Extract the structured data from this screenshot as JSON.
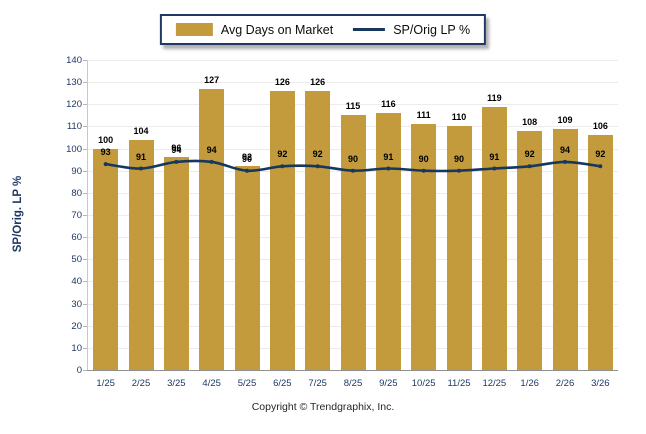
{
  "legend": {
    "bar_label": "Avg Days on Market",
    "line_label": "SP/Orig LP %"
  },
  "y_axis": {
    "title": "SP/Orig. LP %",
    "min": 0,
    "max": 140,
    "step": 10,
    "tick_labels": [
      "0",
      "10",
      "20",
      "30",
      "40",
      "50",
      "60",
      "70",
      "80",
      "90",
      "100",
      "110",
      "120",
      "130",
      "140"
    ]
  },
  "footer": {
    "copyright": "Copyright © Trendgraphix, Inc."
  },
  "colors": {
    "bar": "#c39b3d",
    "line": "#17375e",
    "axis_text": "#1f3864",
    "label_text": "#000000",
    "gridline": "#ececec"
  },
  "chart_data": {
    "type": "bar+line combo",
    "title": "",
    "xlabel": "",
    "ylabel": "SP/Orig. LP %",
    "ylim": [
      0,
      140
    ],
    "grid": true,
    "legend_position": "top-center",
    "categories": [
      "1/25",
      "2/25",
      "3/25",
      "4/25",
      "5/25",
      "6/25",
      "7/25",
      "8/25",
      "9/25",
      "10/25",
      "11/25",
      "12/25",
      "1/26",
      "2/26",
      "3/26"
    ],
    "series": [
      {
        "name": "Avg Days on Market",
        "type": "bar",
        "color": "#c39b3d",
        "values": [
          100,
          104,
          96,
          127,
          92,
          126,
          126,
          115,
          116,
          111,
          110,
          119,
          108,
          109,
          106
        ]
      },
      {
        "name": "SP/Orig LP %",
        "type": "line",
        "color": "#17375e",
        "values": [
          93,
          91,
          94,
          94,
          90,
          92,
          92,
          90,
          91,
          90,
          90,
          91,
          92,
          94,
          92
        ]
      }
    ]
  }
}
